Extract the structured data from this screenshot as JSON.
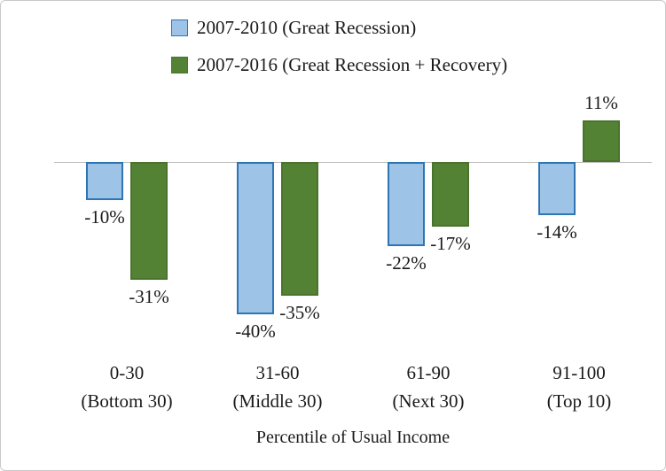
{
  "chart_data": {
    "type": "bar",
    "title": "",
    "xlabel": "Percentile of Usual Income",
    "ylabel": "",
    "ylim": [
      -45,
      15
    ],
    "grid": false,
    "legend_position": "top",
    "categories": [
      "0-30",
      "31-60",
      "61-90",
      "91-100"
    ],
    "category_sublabels": [
      "(Bottom 30)",
      "(Middle 30)",
      "(Next 30)",
      "(Top 10)"
    ],
    "series": [
      {
        "name": "2007-2010 (Great Recession)",
        "fill_color": "#9DC3E6",
        "border_color": "#2E75B6",
        "values": [
          -10,
          -40,
          -22,
          -14
        ],
        "value_labels": [
          "-10%",
          "-40%",
          "-22%",
          "-14%"
        ]
      },
      {
        "name": "2007-2016 (Great Recession + Recovery)",
        "fill_color": "#548235",
        "border_color": "#4A732E",
        "values": [
          -31,
          -35,
          -17,
          11
        ],
        "value_labels": [
          "-31%",
          "-35%",
          "-17%",
          "11%"
        ]
      }
    ]
  }
}
